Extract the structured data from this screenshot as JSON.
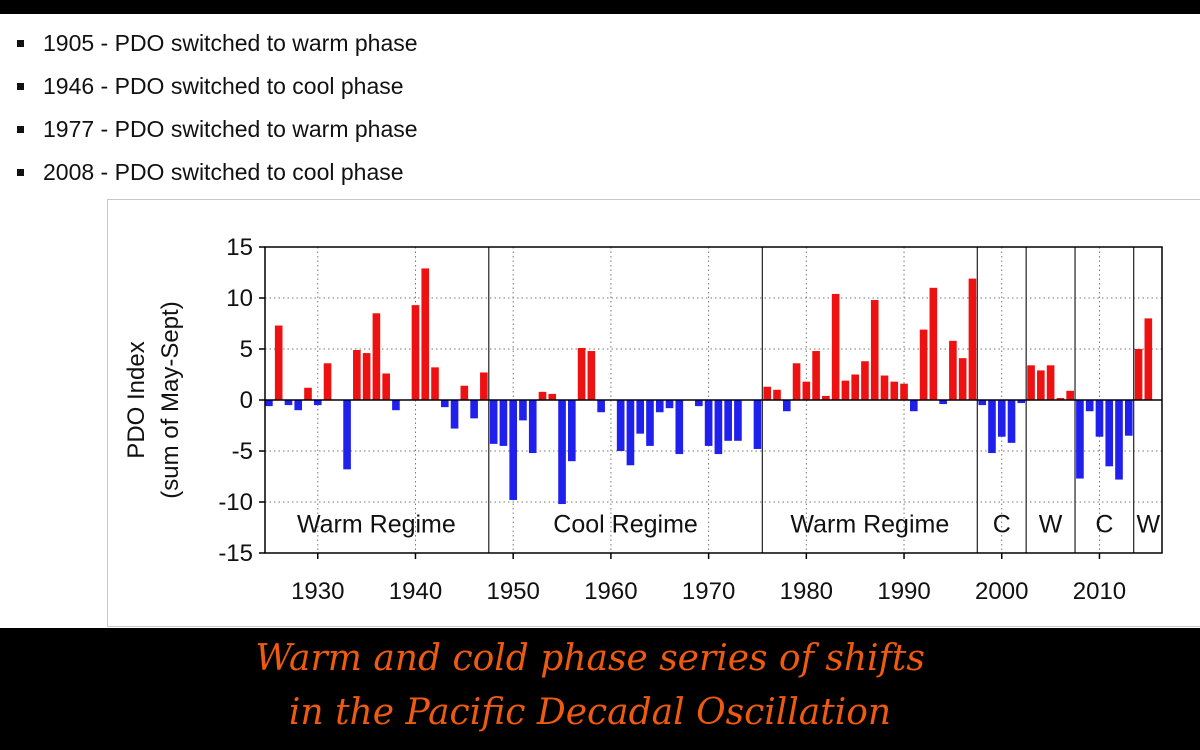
{
  "bullets": [
    "1905 - PDO switched to warm phase",
    "1946 - PDO switched to cool phase",
    "1977 - PDO switched to warm phase",
    "2008 - PDO switched to cool phase"
  ],
  "caption": {
    "line1": "Warm and cold phase series of shifts",
    "line2": "in the Pacific Decadal Oscillation"
  },
  "colors": {
    "positive": "#ee1111",
    "negative": "#1f1fee",
    "caption": "#ee5a10"
  },
  "chart_data": {
    "type": "bar",
    "ylabel": "PDO Index",
    "ylabel2": "(sum of May-Sept)",
    "ylim": [
      -15,
      15
    ],
    "yticks": [
      15,
      10,
      5,
      0,
      -5,
      -10,
      -15
    ],
    "xlim": [
      1924.6,
      2016.4
    ],
    "xticks": [
      1930,
      1940,
      1950,
      1960,
      1970,
      1980,
      1990,
      2000,
      2010
    ],
    "grid": true,
    "regime_boundaries": [
      1947.5,
      1975.5,
      1997.5,
      2002.5,
      2007.5,
      2013.5
    ],
    "regimes": [
      {
        "label": "Warm Regime",
        "center": 1936.0
      },
      {
        "label": "Cool Regime",
        "center": 1961.5
      },
      {
        "label": "Warm Regime",
        "center": 1986.5
      },
      {
        "label": "C",
        "center": 2000.0
      },
      {
        "label": "W",
        "center": 2005.0
      },
      {
        "label": "C",
        "center": 2010.5
      },
      {
        "label": "W",
        "center": 2015.0
      }
    ],
    "x": [
      1925,
      1926,
      1927,
      1928,
      1929,
      1930,
      1931,
      1932,
      1933,
      1934,
      1935,
      1936,
      1937,
      1938,
      1939,
      1940,
      1941,
      1942,
      1943,
      1944,
      1945,
      1946,
      1947,
      1948,
      1949,
      1950,
      1951,
      1952,
      1953,
      1954,
      1955,
      1956,
      1957,
      1958,
      1959,
      1960,
      1961,
      1962,
      1963,
      1964,
      1965,
      1966,
      1967,
      1968,
      1969,
      1970,
      1971,
      1972,
      1973,
      1974,
      1975,
      1976,
      1977,
      1978,
      1979,
      1980,
      1981,
      1982,
      1983,
      1984,
      1985,
      1986,
      1987,
      1988,
      1989,
      1990,
      1991,
      1992,
      1993,
      1994,
      1995,
      1996,
      1997,
      1998,
      1999,
      2000,
      2001,
      2002,
      2003,
      2004,
      2005,
      2006,
      2007,
      2008,
      2009,
      2010,
      2011,
      2012,
      2013,
      2014,
      2015
    ],
    "values": [
      -0.6,
      7.3,
      -0.5,
      -1.0,
      1.2,
      -0.5,
      3.6,
      0.0,
      -6.8,
      4.9,
      4.6,
      8.5,
      2.6,
      -1.0,
      0.0,
      9.3,
      12.9,
      3.2,
      -0.7,
      -2.8,
      1.4,
      -1.8,
      2.7,
      -4.3,
      -4.5,
      -9.8,
      -2.0,
      -5.2,
      0.8,
      0.6,
      -10.2,
      -6.0,
      5.1,
      4.8,
      -1.2,
      0.0,
      -5.0,
      -6.4,
      -3.3,
      -4.5,
      -1.2,
      -0.8,
      -5.3,
      0.0,
      -0.6,
      -4.5,
      -5.3,
      -4.0,
      -4.0,
      0.0,
      -4.8,
      1.3,
      1.0,
      -1.1,
      3.6,
      1.8,
      4.8,
      0.4,
      10.4,
      1.9,
      2.5,
      3.8,
      9.8,
      2.4,
      1.8,
      1.6,
      -1.1,
      6.9,
      11.0,
      -0.4,
      5.8,
      4.1,
      11.9,
      -0.5,
      -5.2,
      -3.6,
      -4.2,
      -0.3,
      3.4,
      2.9,
      3.4,
      0.2,
      0.9,
      -7.7,
      -1.1,
      -3.6,
      -6.5,
      -7.8,
      -3.5,
      5.0,
      8.0
    ]
  }
}
